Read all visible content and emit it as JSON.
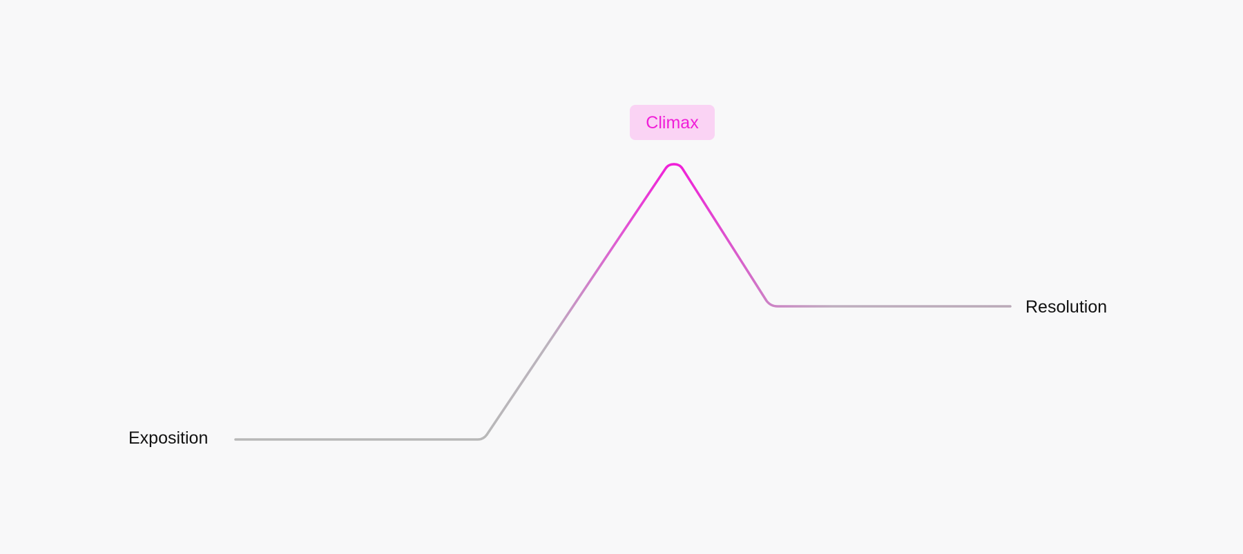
{
  "labels": {
    "exposition": "Exposition",
    "climax": "Climax",
    "resolution": "Resolution"
  },
  "colors": {
    "background": "#f8f8f9",
    "neutral_line": "#b8b8b8",
    "accent": "#f01fd8",
    "accent_badge_bg": "#fad3f4",
    "label_text": "#111111"
  }
}
